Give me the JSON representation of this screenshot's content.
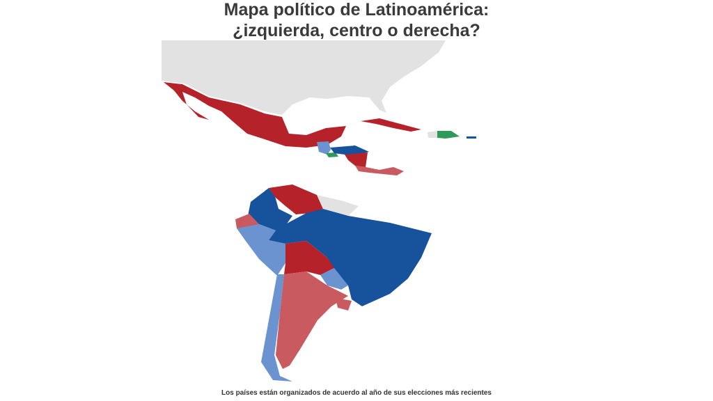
{
  "header": {
    "title_line1": "Mapa político de Latinoamérica:",
    "title_line2": "¿izquierda, centro o derecha?"
  },
  "footer": {
    "note": "Los países están organizados de acuerdo al año de sus elecciones más recientes"
  }
}
